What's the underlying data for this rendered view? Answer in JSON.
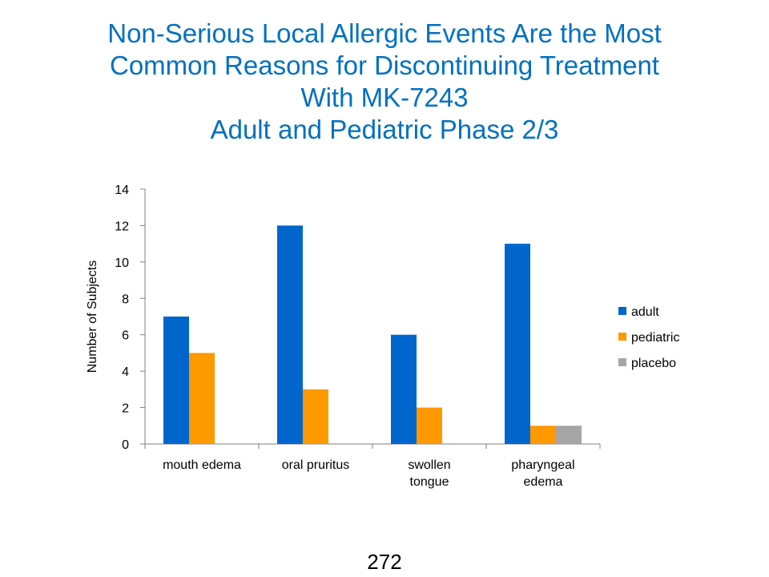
{
  "title_lines": [
    "Non-Serious Local Allergic Events Are the Most",
    "Common Reasons for Discontinuing Treatment",
    "With MK-7243",
    "Adult and Pediatric Phase 2/3"
  ],
  "page_number": "272",
  "chart_data": {
    "type": "bar",
    "categories": [
      [
        "mouth edema"
      ],
      [
        "oral pruritus"
      ],
      [
        "swollen",
        "tongue"
      ],
      [
        "pharyngeal",
        "edema"
      ]
    ],
    "series": [
      {
        "name": "adult",
        "color": "#0066CC",
        "values": [
          7,
          12,
          6,
          11
        ]
      },
      {
        "name": "pediatric",
        "color": "#FF9900",
        "values": [
          5,
          3,
          2,
          1
        ]
      },
      {
        "name": "placebo",
        "color": "#A6A6A6",
        "values": [
          0,
          0,
          0,
          1
        ]
      }
    ],
    "ylabel": "Number  of Subjects",
    "ylim": [
      0,
      14
    ],
    "yticks": [
      0,
      2,
      4,
      6,
      8,
      10,
      12,
      14
    ],
    "grid": false,
    "legend_position": "right"
  }
}
